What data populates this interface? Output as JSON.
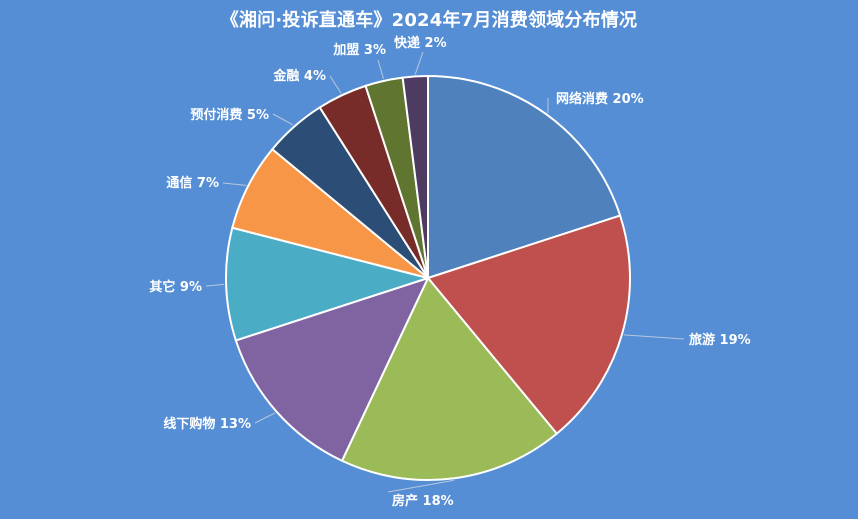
{
  "chart_data": {
    "type": "pie",
    "title": "《湘问·投诉直通车》2024年7月消费领域分布情况",
    "slices": [
      {
        "label": "网络消费 20%",
        "value": 20,
        "color": "#4f81bd"
      },
      {
        "label": "旅游 19%",
        "value": 19,
        "color": "#c0504d"
      },
      {
        "label": "房产 18%",
        "value": 18,
        "color": "#9bbb59"
      },
      {
        "label": "线下购物 13%",
        "value": 13,
        "color": "#8064a2"
      },
      {
        "label": "其它 9%",
        "value": 9,
        "color": "#4bacc6"
      },
      {
        "label": "通信 7%",
        "value": 7,
        "color": "#f79646"
      },
      {
        "label": "预付消费 5%",
        "value": 5,
        "color": "#2c4d75"
      },
      {
        "label": "金融 4%",
        "value": 4,
        "color": "#772c2a"
      },
      {
        "label": "加盟 3%",
        "value": 3,
        "color": "#5f7530"
      },
      {
        "label": "快递 2%",
        "value": 2,
        "color": "#4d3b62"
      }
    ],
    "legend": "none"
  }
}
